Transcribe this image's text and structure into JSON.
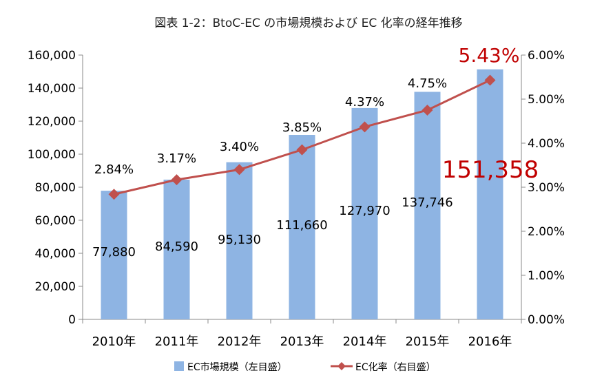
{
  "chart_data": {
    "type": "bar",
    "title": "図表 1-2：BtoC-EC の市場規模および EC 化率の経年推移",
    "categories": [
      "2010年",
      "2011年",
      "2012年",
      "2013年",
      "2014年",
      "2015年",
      "2016年"
    ],
    "series": [
      {
        "name": "EC市場規模（左目盛）",
        "type": "bar",
        "axis": "left",
        "values": [
          77880,
          84590,
          95130,
          111660,
          127970,
          137746,
          151358
        ],
        "labels": [
          "77,880",
          "84,590",
          "95,130",
          "111,660",
          "127,970",
          "137,746",
          "151,358"
        ],
        "color": "#8EB4E3"
      },
      {
        "name": "EC化率（右目盛）",
        "type": "line",
        "axis": "right",
        "values": [
          2.84,
          3.17,
          3.4,
          3.85,
          4.37,
          4.75,
          5.43
        ],
        "labels": [
          "2.84%",
          "3.17%",
          "3.40%",
          "3.85%",
          "4.37%",
          "4.75%",
          "5.43%"
        ],
        "color": "#C0504D"
      }
    ],
    "y_left": {
      "range": [
        0,
        160000
      ],
      "ticks": [
        "0",
        "20,000",
        "40,000",
        "60,000",
        "80,000",
        "100,000",
        "120,000",
        "140,000",
        "160,000"
      ]
    },
    "y_right": {
      "range": [
        0,
        6
      ],
      "ticks": [
        "0.00%",
        "1.00%",
        "2.00%",
        "3.00%",
        "4.00%",
        "5.00%",
        "6.00%"
      ]
    },
    "grid": false,
    "legend": "bottom",
    "highlight_color": "#C00000",
    "axis_color": "#888888"
  }
}
